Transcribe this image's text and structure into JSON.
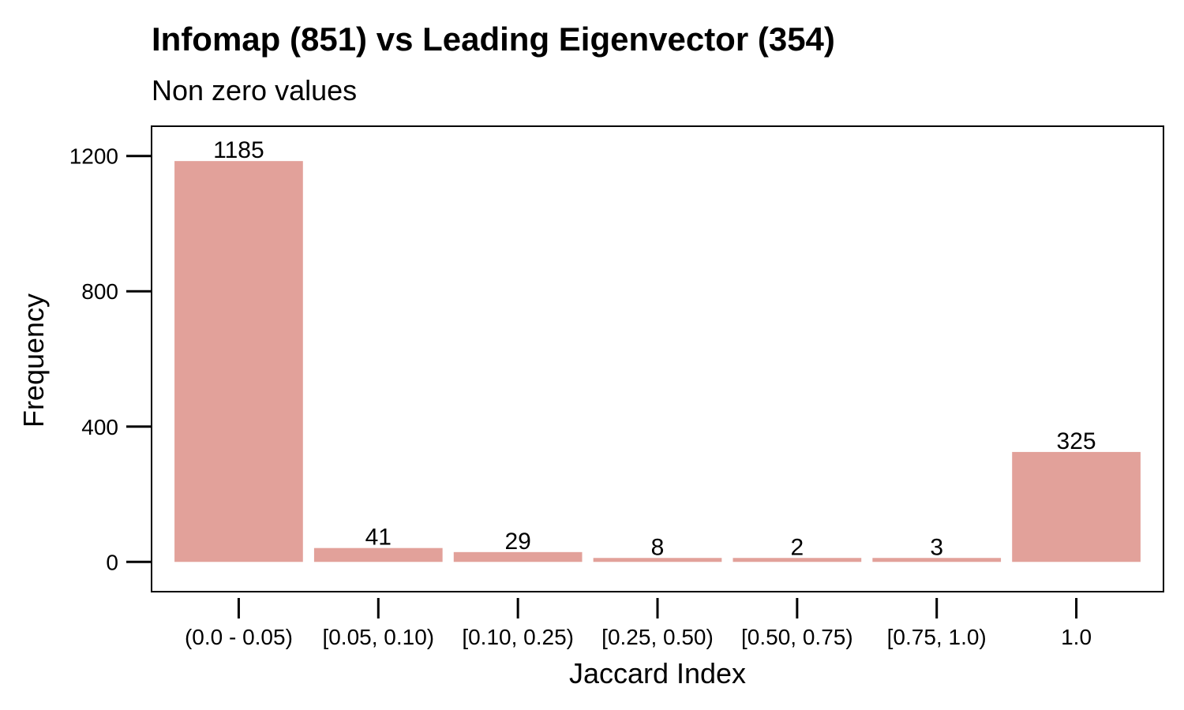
{
  "chart_data": {
    "type": "bar",
    "title": "Infomap (851) vs Leading Eigenvector (354)",
    "subtitle": "Non zero values",
    "xlabel": "Jaccard Index",
    "ylabel": "Frequency",
    "categories": [
      "(0.0 - 0.05)",
      "[0.05, 0.10)",
      "[0.10, 0.25)",
      "[0.25, 0.50)",
      "[0.50, 0.75)",
      "[0.75, 1.0)",
      "1.0"
    ],
    "values": [
      1185,
      41,
      29,
      8,
      2,
      3,
      325
    ],
    "data_labels": [
      "1185",
      "41",
      "29",
      "8",
      "2",
      "3",
      "325"
    ],
    "yticks": [
      0,
      400,
      800,
      1200
    ],
    "ytick_labels": [
      "0",
      "400",
      "800",
      "1200"
    ],
    "ylim": [
      -88,
      1288
    ],
    "grid": false,
    "legend": "none",
    "bar_color": "#E2A19A"
  }
}
